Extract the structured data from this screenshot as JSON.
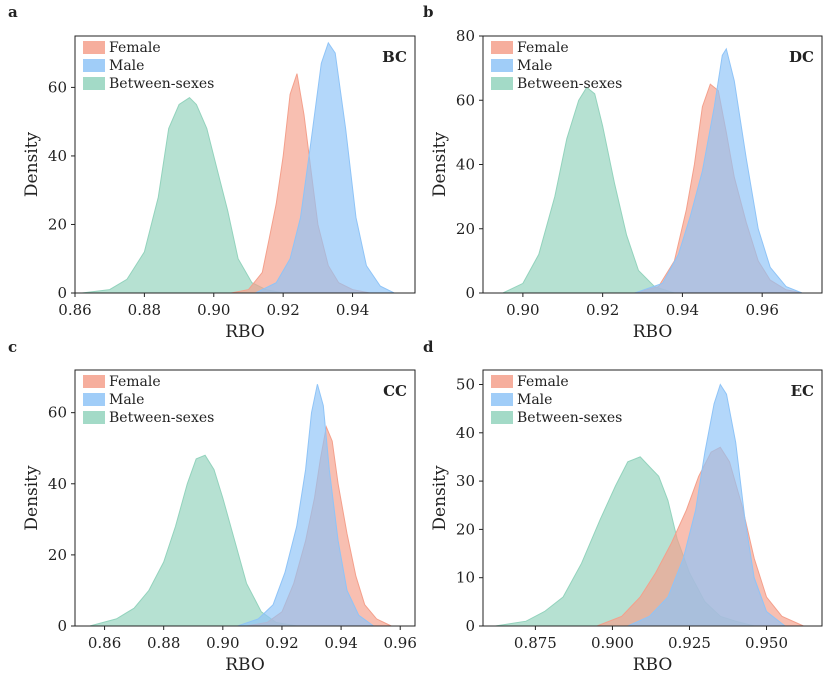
{
  "chart_data": [
    {
      "type": "area",
      "panel_letter": "a",
      "tag": "BC",
      "xlabel": "RBO",
      "ylabel": "Density",
      "xlim": [
        0.86,
        0.958
      ],
      "ylim": [
        0,
        75
      ],
      "xticks": [
        0.86,
        0.88,
        0.9,
        0.92,
        0.94
      ],
      "xtick_labels": [
        "0.86",
        "0.88",
        "0.90",
        "0.92",
        "0.94"
      ],
      "yticks": [
        0,
        20,
        40,
        60
      ],
      "ytick_labels": [
        "0",
        "20",
        "40",
        "60"
      ],
      "legend": [
        "Female",
        "Male",
        "Between-sexes"
      ],
      "legend_position": "top-left",
      "series": [
        {
          "name": "Female",
          "color": "#f4a08c",
          "x": [
            0.905,
            0.91,
            0.914,
            0.916,
            0.918,
            0.92,
            0.922,
            0.924,
            0.926,
            0.928,
            0.93,
            0.933,
            0.936,
            0.94,
            0.945
          ],
          "y": [
            0,
            1,
            6,
            16,
            26,
            40,
            58,
            64,
            52,
            36,
            20,
            8,
            3,
            1,
            0
          ]
        },
        {
          "name": "Male",
          "color": "#8fc4f7",
          "x": [
            0.912,
            0.918,
            0.922,
            0.925,
            0.928,
            0.931,
            0.933,
            0.935,
            0.938,
            0.941,
            0.944,
            0.948,
            0.952
          ],
          "y": [
            0,
            3,
            10,
            22,
            44,
            67,
            73,
            70,
            48,
            22,
            8,
            2,
            0
          ]
        },
        {
          "name": "Between-sexes",
          "color": "#93d3bd",
          "x": [
            0.862,
            0.87,
            0.875,
            0.88,
            0.884,
            0.887,
            0.89,
            0.893,
            0.895,
            0.898,
            0.901,
            0.904,
            0.907,
            0.911,
            0.915,
            0.92
          ],
          "y": [
            0,
            1,
            4,
            12,
            28,
            48,
            55,
            57,
            55,
            48,
            36,
            24,
            10,
            3,
            1,
            0
          ]
        }
      ]
    },
    {
      "type": "area",
      "panel_letter": "b",
      "tag": "DC",
      "xlabel": "RBO",
      "ylabel": "Density",
      "xlim": [
        0.89,
        0.975
      ],
      "ylim": [
        0,
        80
      ],
      "xticks": [
        0.9,
        0.92,
        0.94,
        0.96
      ],
      "xtick_labels": [
        "0.90",
        "0.92",
        "0.94",
        "0.96"
      ],
      "yticks": [
        0,
        20,
        40,
        60,
        80
      ],
      "ytick_labels": [
        "0",
        "20",
        "40",
        "60",
        "80"
      ],
      "legend": [
        "Female",
        "Male",
        "Between-sexes"
      ],
      "legend_position": "top-left",
      "series": [
        {
          "name": "Female",
          "color": "#f4a08c",
          "x": [
            0.928,
            0.934,
            0.938,
            0.941,
            0.943,
            0.945,
            0.947,
            0.949,
            0.951,
            0.953,
            0.956,
            0.959,
            0.962,
            0.966,
            0.97
          ],
          "y": [
            0,
            2,
            10,
            26,
            40,
            58,
            65,
            63,
            50,
            36,
            22,
            10,
            4,
            1,
            0
          ]
        },
        {
          "name": "Male",
          "color": "#8fc4f7",
          "x": [
            0.928,
            0.935,
            0.939,
            0.942,
            0.945,
            0.948,
            0.95,
            0.951,
            0.953,
            0.956,
            0.959,
            0.962,
            0.966,
            0.97
          ],
          "y": [
            0,
            3,
            12,
            24,
            38,
            58,
            74,
            76,
            66,
            42,
            20,
            8,
            2,
            0
          ]
        },
        {
          "name": "Between-sexes",
          "color": "#93d3bd",
          "x": [
            0.895,
            0.9,
            0.904,
            0.908,
            0.911,
            0.914,
            0.916,
            0.918,
            0.92,
            0.923,
            0.926,
            0.929,
            0.933,
            0.938
          ],
          "y": [
            0,
            3,
            12,
            30,
            48,
            60,
            64,
            62,
            52,
            34,
            18,
            7,
            2,
            0
          ]
        }
      ]
    },
    {
      "type": "area",
      "panel_letter": "c",
      "tag": "CC",
      "xlabel": "RBO",
      "ylabel": "Density",
      "xlim": [
        0.85,
        0.965
      ],
      "ylim": [
        0,
        72
      ],
      "xticks": [
        0.86,
        0.88,
        0.9,
        0.92,
        0.94,
        0.96
      ],
      "xtick_labels": [
        "0.86",
        "0.88",
        "0.90",
        "0.92",
        "0.94",
        "0.96"
      ],
      "yticks": [
        0,
        20,
        40,
        60
      ],
      "ytick_labels": [
        "0",
        "20",
        "40",
        "60"
      ],
      "legend": [
        "Female",
        "Male",
        "Between-sexes"
      ],
      "legend_position": "top-left",
      "series": [
        {
          "name": "Female",
          "color": "#f4a08c",
          "x": [
            0.908,
            0.915,
            0.92,
            0.924,
            0.928,
            0.931,
            0.933,
            0.935,
            0.937,
            0.939,
            0.942,
            0.945,
            0.948,
            0.952,
            0.957
          ],
          "y": [
            0,
            1,
            4,
            12,
            24,
            36,
            47,
            56,
            52,
            40,
            26,
            14,
            6,
            2,
            0
          ]
        },
        {
          "name": "Male",
          "color": "#8fc4f7",
          "x": [
            0.905,
            0.912,
            0.917,
            0.921,
            0.925,
            0.928,
            0.93,
            0.932,
            0.934,
            0.936,
            0.939,
            0.942,
            0.946,
            0.951
          ],
          "y": [
            0,
            2,
            6,
            15,
            28,
            44,
            60,
            68,
            62,
            44,
            24,
            10,
            3,
            0
          ]
        },
        {
          "name": "Between-sexes",
          "color": "#93d3bd",
          "x": [
            0.855,
            0.864,
            0.87,
            0.875,
            0.88,
            0.884,
            0.888,
            0.891,
            0.894,
            0.897,
            0.9,
            0.904,
            0.908,
            0.913,
            0.918,
            0.925
          ],
          "y": [
            0,
            2,
            5,
            10,
            18,
            28,
            40,
            47,
            48,
            44,
            36,
            24,
            12,
            4,
            1,
            0
          ]
        }
      ]
    },
    {
      "type": "area",
      "panel_letter": "d",
      "tag": "EC",
      "xlabel": "RBO",
      "ylabel": "Density",
      "xlim": [
        0.858,
        0.968
      ],
      "ylim": [
        0,
        53
      ],
      "xticks": [
        0.875,
        0.9,
        0.925,
        0.95
      ],
      "xtick_labels": [
        "0.875",
        "0.900",
        "0.925",
        "0.950"
      ],
      "yticks": [
        0,
        10,
        20,
        30,
        40,
        50
      ],
      "ytick_labels": [
        "0",
        "10",
        "20",
        "30",
        "40",
        "50"
      ],
      "legend": [
        "Female",
        "Male",
        "Between-sexes"
      ],
      "legend_position": "top-left",
      "series": [
        {
          "name": "Female",
          "color": "#f4a08c",
          "x": [
            0.895,
            0.903,
            0.909,
            0.914,
            0.919,
            0.924,
            0.928,
            0.932,
            0.935,
            0.938,
            0.942,
            0.946,
            0.95,
            0.955,
            0.962
          ],
          "y": [
            0,
            2,
            6,
            11,
            17,
            24,
            31,
            36,
            37,
            34,
            25,
            14,
            6,
            2,
            0
          ]
        },
        {
          "name": "Male",
          "color": "#8fc4f7",
          "x": [
            0.905,
            0.912,
            0.918,
            0.923,
            0.927,
            0.93,
            0.933,
            0.935,
            0.937,
            0.94,
            0.943,
            0.946,
            0.95,
            0.956
          ],
          "y": [
            0,
            2,
            6,
            14,
            24,
            36,
            46,
            50,
            48,
            38,
            22,
            10,
            3,
            0
          ]
        },
        {
          "name": "Between-sexes",
          "color": "#93d3bd",
          "x": [
            0.862,
            0.872,
            0.878,
            0.884,
            0.89,
            0.896,
            0.901,
            0.905,
            0.909,
            0.912,
            0.915,
            0.918,
            0.921,
            0.925,
            0.93,
            0.935,
            0.94,
            0.946
          ],
          "y": [
            0,
            1,
            3,
            6,
            13,
            22,
            29,
            34,
            35,
            33,
            31,
            26,
            18,
            11,
            5,
            2,
            1,
            0
          ]
        }
      ]
    }
  ]
}
